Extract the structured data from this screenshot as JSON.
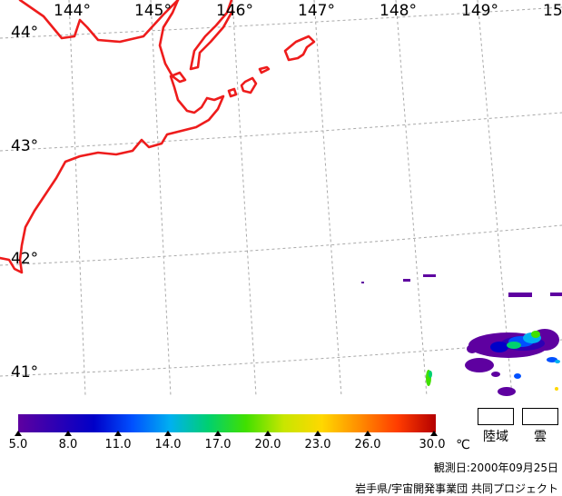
{
  "map": {
    "lon_labels": [
      "144°",
      "145°",
      "146°",
      "147°",
      "148°",
      "149°",
      "15"
    ],
    "lat_labels": [
      "44°",
      "43°",
      "42°",
      "41°"
    ]
  },
  "colorbar": {
    "ticks": [
      "5.0",
      "8.0",
      "11.0",
      "14.0",
      "17.0",
      "20.0",
      "23.0",
      "26.0",
      "30.0"
    ],
    "tick_values": [
      5,
      8,
      11,
      14,
      17,
      20,
      23,
      26,
      30
    ],
    "range": [
      5,
      30
    ],
    "unit": "℃",
    "colors": [
      "#5e00a0",
      "#2d00b4",
      "#0000c8",
      "#0050ff",
      "#00b0f0",
      "#00d070",
      "#40e000",
      "#c8e600",
      "#ffd800",
      "#ff8c00",
      "#ff3c00",
      "#b40000"
    ]
  },
  "legend": {
    "land_label": "陸域",
    "cloud_label": "雲"
  },
  "footer": {
    "date_label": "観測日:2000年09月25日",
    "credit": "岩手県/宇宙開発事業団 共同プロジェクト"
  },
  "colors": {
    "coastline": "#ee1c1c",
    "grid": "#a9a9a9"
  }
}
